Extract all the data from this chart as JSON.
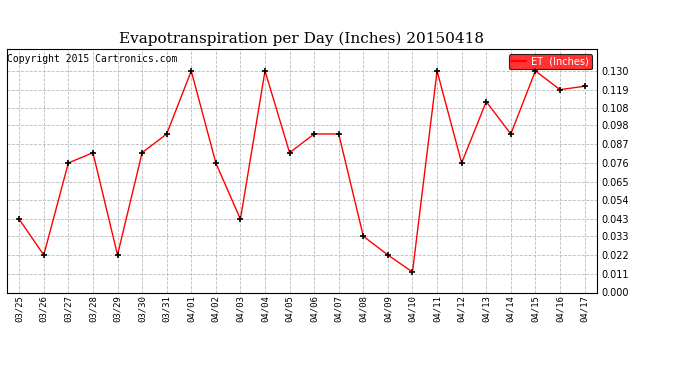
{
  "title": "Evapotranspiration per Day (Inches) 20150418",
  "copyright": "Copyright 2015 Cartronics.com",
  "legend_label": "ET  (Inches)",
  "legend_bg": "#ff0000",
  "legend_text_color": "#ffffff",
  "x_labels": [
    "03/25",
    "03/26",
    "03/27",
    "03/28",
    "03/29",
    "03/30",
    "03/31",
    "04/01",
    "04/02",
    "04/03",
    "04/04",
    "04/05",
    "04/06",
    "04/07",
    "04/08",
    "04/09",
    "04/10",
    "04/11",
    "04/12",
    "04/13",
    "04/14",
    "04/15",
    "04/16",
    "04/17"
  ],
  "y_values": [
    0.043,
    0.022,
    0.076,
    0.082,
    0.022,
    0.082,
    0.093,
    0.13,
    0.076,
    0.043,
    0.13,
    0.082,
    0.093,
    0.093,
    0.033,
    0.022,
    0.012,
    0.13,
    0.076,
    0.112,
    0.093,
    0.13,
    0.119,
    0.121
  ],
  "line_color": "#ff0000",
  "marker_color": "#000000",
  "background_color": "#ffffff",
  "grid_color": "#bbbbbb",
  "ylim": [
    0.0,
    0.143
  ],
  "yticks": [
    0.0,
    0.011,
    0.022,
    0.033,
    0.043,
    0.054,
    0.065,
    0.076,
    0.087,
    0.098,
    0.108,
    0.119,
    0.13
  ],
  "title_fontsize": 11,
  "copyright_fontsize": 7
}
